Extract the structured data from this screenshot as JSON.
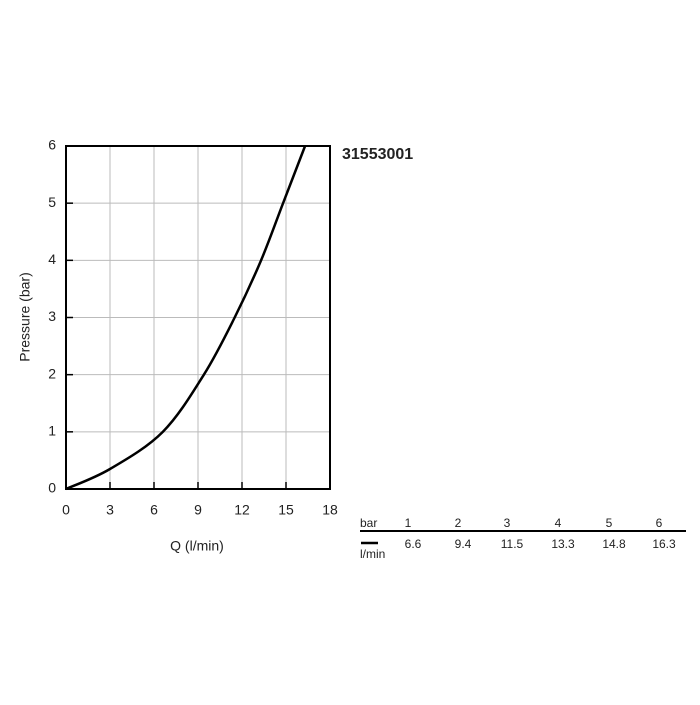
{
  "chart_data": {
    "type": "line",
    "title": "31553001",
    "xlabel": "Q (l/min)",
    "ylabel": "Pressure (bar)",
    "x": [
      0,
      3,
      6.6,
      9.4,
      11.5,
      13.3,
      14.8,
      16.3
    ],
    "series": [
      {
        "color": "#000000",
        "values": [
          0,
          0.35,
          1,
          2,
          3,
          4,
          5,
          6
        ]
      }
    ],
    "xlim": [
      0,
      18
    ],
    "ylim": [
      0,
      6
    ],
    "xticks": [
      0,
      3,
      6,
      9,
      12,
      15,
      18
    ],
    "yticks": [
      0,
      1,
      2,
      3,
      4,
      5,
      6
    ],
    "grid": true
  },
  "table": {
    "row_labels": [
      "bar",
      "l/min"
    ],
    "pressures": [
      1,
      2,
      3,
      4,
      5,
      6
    ],
    "flows": [
      6.6,
      9.4,
      11.5,
      13.3,
      14.8,
      16.3
    ]
  }
}
